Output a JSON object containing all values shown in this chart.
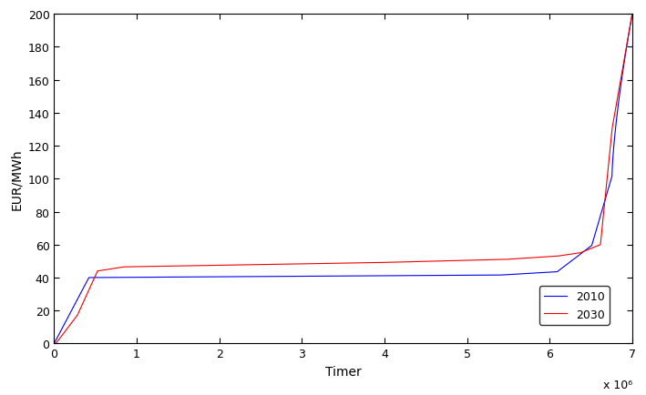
{
  "title": "",
  "xlabel": "Timer",
  "ylabel": "EUR/MWh",
  "xlim": [
    0,
    7000000.0
  ],
  "ylim": [
    0,
    200
  ],
  "xticks": [
    0,
    1000000.0,
    2000000.0,
    3000000.0,
    4000000.0,
    5000000.0,
    6000000.0,
    7000000.0
  ],
  "xtick_labels": [
    "0",
    "1",
    "2",
    "3",
    "4",
    "5",
    "6",
    "7"
  ],
  "xscale_label": "x 10⁶",
  "yticks": [
    0,
    20,
    40,
    60,
    80,
    100,
    120,
    140,
    160,
    180,
    200
  ],
  "line_2010_color": "#0000ee",
  "line_2030_color": "#ee0000",
  "legend_labels": [
    "2010",
    "2030"
  ],
  "figsize": [
    7.09,
    4.35
  ],
  "dpi": 100,
  "bg_color": "#ffffff"
}
